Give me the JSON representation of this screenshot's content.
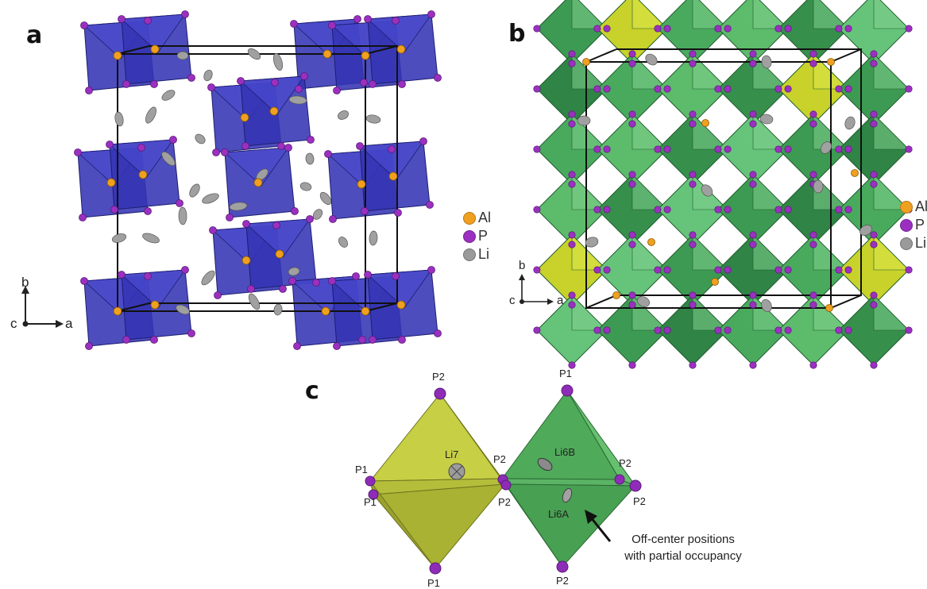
{
  "panels": {
    "a": {
      "letter": "a",
      "legend": [
        "Al",
        "P",
        "Li"
      ],
      "axes": {
        "vertical": "b",
        "horizontal": "a",
        "origin": "c"
      }
    },
    "b": {
      "letter": "b",
      "legend": [
        "Al",
        "P",
        "Li"
      ],
      "axes": {
        "vertical": "b",
        "horizontal": "a",
        "origin": "c"
      }
    },
    "c": {
      "letter": "c",
      "atom_labels": {
        "p2_top": "P2",
        "p1_left_a": "P1",
        "p1_left_b": "P1",
        "li7": "Li7",
        "p2_mid_a": "P2",
        "p2_mid_b": "P2",
        "p1_bottom": "P1",
        "p1_top": "P1",
        "li6b": "Li6B",
        "li6a": "Li6A",
        "p2_right_a": "P2",
        "p2_right_b": "P2",
        "p2_bottom": "P2"
      },
      "annotation": {
        "line1": "Off-center positions",
        "line2": "with partial occupancy"
      }
    }
  },
  "colors": {
    "al": "#f0a020",
    "p": "#9b30c0",
    "li": "#9a9a9a",
    "tetra": "#2e2eb0",
    "octa_green": "#3aa45a",
    "octa_yellow": "#c8d22a",
    "cell": "#111111"
  },
  "icons": [
    "legend-dot-icon",
    "axis-arrow-icon"
  ]
}
